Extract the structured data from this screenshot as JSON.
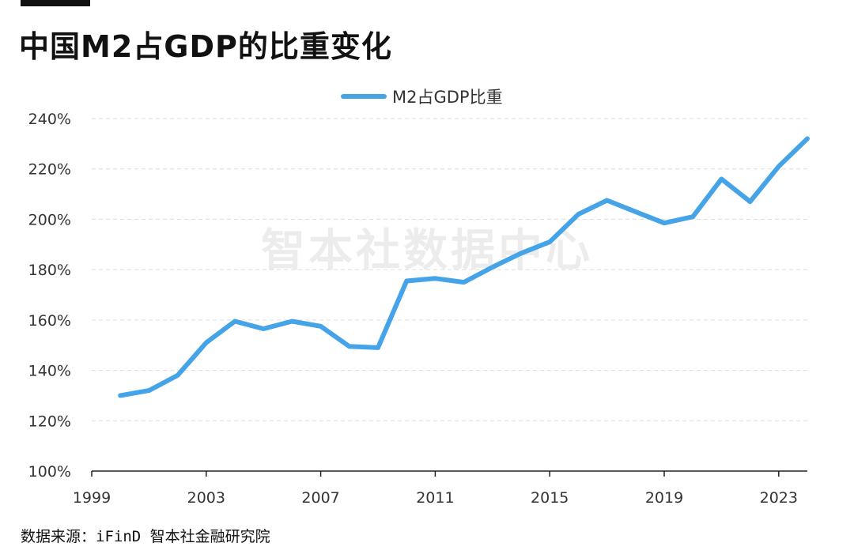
{
  "header": {
    "title": "中国M2占GDP的比重变化"
  },
  "watermark": "智本社数据中心",
  "source": "数据来源：iFinD 智本社金融研究院",
  "colors": {
    "line": "#45a3e8",
    "grid": "#dddddd",
    "axis": "#222222",
    "text": "#333333"
  },
  "chart_data": {
    "type": "line",
    "title": "",
    "xlabel": "",
    "ylabel": "",
    "legend_position": "top-center",
    "grid": true,
    "x": [
      2000,
      2001,
      2002,
      2003,
      2004,
      2005,
      2006,
      2007,
      2008,
      2009,
      2010,
      2011,
      2012,
      2013,
      2014,
      2015,
      2016,
      2017,
      2018,
      2019,
      2020,
      2021,
      2022,
      2023,
      2024
    ],
    "series": [
      {
        "name": "M2占GDP比重",
        "values": [
          130,
          132,
          138,
          151,
          159.5,
          156.5,
          159.5,
          157.5,
          149.5,
          149,
          175.5,
          176.5,
          175,
          181,
          186.5,
          191,
          202,
          207.5,
          203,
          198.5,
          201,
          216,
          207,
          221,
          232
        ]
      }
    ],
    "xlim": [
      1999,
      2024
    ],
    "ylim": [
      100,
      240
    ],
    "x_ticks": [
      "1999",
      "2003",
      "2007",
      "2011",
      "2015",
      "2019",
      "2023"
    ],
    "y_ticks": [
      "100%",
      "120%",
      "140%",
      "160%",
      "180%",
      "200%",
      "220%",
      "240%"
    ]
  }
}
